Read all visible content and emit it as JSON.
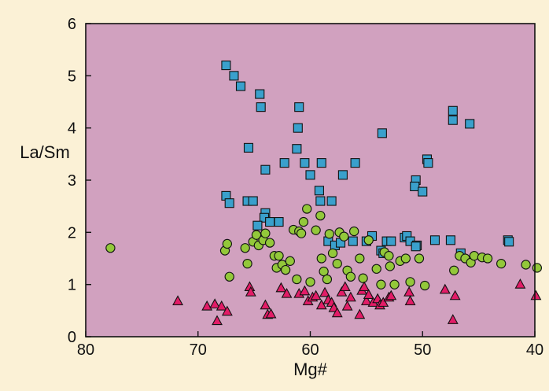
{
  "chart_data": {
    "type": "scatter",
    "title": "",
    "xlabel": "Mg#",
    "ylabel": "La/Sm",
    "xlim": [
      80,
      40
    ],
    "ylim": [
      0,
      6
    ],
    "x_reversed": true,
    "xticks": [
      "80",
      "70",
      "60",
      "50",
      "40"
    ],
    "yticks": [
      "0",
      "1",
      "2",
      "3",
      "4",
      "5",
      "6"
    ],
    "grid": false,
    "colors": {
      "plot_background": "#d1a1bf",
      "page_background": "#fbf1d6",
      "squares": "#3aa0cc",
      "circles": "#93c83a",
      "triangles": "#e21c67",
      "outline": "#111111"
    },
    "series": [
      {
        "name": "squares",
        "marker": "square",
        "points": [
          [
            67.5,
            5.2
          ],
          [
            66.8,
            5.0
          ],
          [
            66.2,
            4.8
          ],
          [
            64.5,
            4.65
          ],
          [
            64.4,
            4.4
          ],
          [
            61.0,
            4.4
          ],
          [
            61.1,
            4.0
          ],
          [
            61.2,
            3.6
          ],
          [
            65.5,
            3.62
          ],
          [
            64.0,
            3.2
          ],
          [
            62.3,
            3.33
          ],
          [
            60.5,
            3.33
          ],
          [
            59.0,
            3.33
          ],
          [
            56.0,
            3.33
          ],
          [
            60.0,
            3.1
          ],
          [
            57.1,
            3.1
          ],
          [
            59.2,
            2.8
          ],
          [
            59.1,
            2.6
          ],
          [
            67.5,
            2.7
          ],
          [
            67.2,
            2.56
          ],
          [
            65.6,
            2.6
          ],
          [
            65.1,
            2.6
          ],
          [
            64.0,
            2.37
          ],
          [
            64.1,
            2.28
          ],
          [
            63.6,
            2.2
          ],
          [
            62.8,
            2.2
          ],
          [
            64.7,
            2.13
          ],
          [
            58.1,
            2.6
          ],
          [
            58.4,
            1.83
          ],
          [
            57.8,
            1.75
          ],
          [
            57.3,
            1.8
          ],
          [
            56.2,
            1.83
          ],
          [
            55.0,
            1.83
          ],
          [
            54.5,
            1.93
          ],
          [
            53.2,
            1.83
          ],
          [
            52.8,
            1.83
          ],
          [
            53.7,
            1.65
          ],
          [
            53.5,
            1.6
          ],
          [
            51.6,
            1.9
          ],
          [
            51.4,
            1.93
          ],
          [
            51.1,
            1.83
          ],
          [
            50.5,
            1.75
          ],
          [
            50.6,
            1.73
          ],
          [
            48.9,
            1.85
          ],
          [
            47.5,
            1.85
          ],
          [
            46.6,
            1.6
          ],
          [
            42.4,
            1.85
          ],
          [
            42.3,
            1.82
          ],
          [
            53.6,
            3.9
          ],
          [
            47.3,
            4.33
          ],
          [
            47.3,
            4.15
          ],
          [
            45.8,
            4.08
          ],
          [
            49.6,
            3.4
          ],
          [
            49.5,
            3.33
          ],
          [
            50.6,
            3.0
          ],
          [
            50.7,
            2.88
          ],
          [
            50.0,
            2.78
          ]
        ]
      },
      {
        "name": "circles",
        "marker": "circle",
        "points": [
          [
            77.8,
            1.7
          ],
          [
            67.6,
            1.65
          ],
          [
            67.4,
            1.78
          ],
          [
            67.2,
            1.15
          ],
          [
            65.8,
            1.7
          ],
          [
            65.6,
            1.4
          ],
          [
            65.1,
            1.82
          ],
          [
            64.8,
            1.95
          ],
          [
            64.6,
            1.75
          ],
          [
            64.2,
            1.85
          ],
          [
            64.0,
            1.98
          ],
          [
            63.6,
            1.8
          ],
          [
            63.2,
            1.55
          ],
          [
            63.0,
            1.32
          ],
          [
            62.8,
            1.55
          ],
          [
            62.5,
            1.38
          ],
          [
            62.2,
            1.28
          ],
          [
            61.8,
            1.45
          ],
          [
            61.5,
            2.05
          ],
          [
            61.2,
            1.1
          ],
          [
            61.0,
            2.02
          ],
          [
            60.8,
            1.98
          ],
          [
            60.6,
            2.2
          ],
          [
            60.3,
            2.45
          ],
          [
            60.0,
            1.05
          ],
          [
            59.5,
            2.04
          ],
          [
            59.1,
            2.32
          ],
          [
            59.0,
            1.5
          ],
          [
            58.8,
            1.25
          ],
          [
            58.5,
            1.1
          ],
          [
            58.3,
            1.97
          ],
          [
            58.0,
            1.6
          ],
          [
            57.6,
            1.4
          ],
          [
            57.4,
            2.0
          ],
          [
            57.0,
            1.92
          ],
          [
            56.7,
            1.27
          ],
          [
            56.4,
            1.15
          ],
          [
            56.1,
            2.02
          ],
          [
            55.6,
            1.5
          ],
          [
            55.3,
            1.12
          ],
          [
            54.8,
            1.85
          ],
          [
            54.1,
            1.3
          ],
          [
            53.7,
            1.0
          ],
          [
            53.4,
            1.62
          ],
          [
            53.0,
            1.55
          ],
          [
            52.9,
            1.35
          ],
          [
            52.5,
            1.0
          ],
          [
            52.0,
            1.45
          ],
          [
            51.5,
            1.5
          ],
          [
            51.1,
            1.05
          ],
          [
            50.3,
            1.5
          ],
          [
            49.8,
            0.98
          ],
          [
            47.2,
            1.27
          ],
          [
            46.7,
            1.55
          ],
          [
            46.2,
            1.5
          ],
          [
            45.7,
            1.42
          ],
          [
            45.4,
            1.55
          ],
          [
            44.7,
            1.52
          ],
          [
            44.2,
            1.5
          ],
          [
            43.0,
            1.4
          ],
          [
            40.8,
            1.38
          ],
          [
            39.8,
            1.32
          ]
        ]
      },
      {
        "name": "triangles",
        "marker": "triangle",
        "points": [
          [
            71.8,
            0.68
          ],
          [
            69.2,
            0.58
          ],
          [
            68.5,
            0.62
          ],
          [
            68.3,
            0.3
          ],
          [
            67.9,
            0.58
          ],
          [
            67.4,
            0.48
          ],
          [
            65.4,
            0.95
          ],
          [
            65.3,
            0.85
          ],
          [
            64.0,
            0.6
          ],
          [
            63.8,
            0.42
          ],
          [
            63.5,
            0.43
          ],
          [
            62.6,
            0.93
          ],
          [
            62.1,
            0.82
          ],
          [
            61.0,
            0.82
          ],
          [
            60.5,
            0.87
          ],
          [
            60.2,
            0.68
          ],
          [
            59.8,
            0.75
          ],
          [
            59.5,
            0.78
          ],
          [
            59.0,
            0.6
          ],
          [
            58.7,
            0.84
          ],
          [
            58.4,
            0.7
          ],
          [
            58.1,
            0.65
          ],
          [
            57.9,
            0.55
          ],
          [
            57.6,
            0.45
          ],
          [
            57.2,
            0.85
          ],
          [
            56.9,
            0.95
          ],
          [
            56.7,
            0.58
          ],
          [
            56.4,
            0.75
          ],
          [
            55.6,
            0.42
          ],
          [
            55.4,
            0.88
          ],
          [
            55.2,
            0.95
          ],
          [
            55.0,
            0.68
          ],
          [
            54.8,
            0.8
          ],
          [
            54.4,
            0.65
          ],
          [
            54.0,
            0.72
          ],
          [
            53.8,
            0.6
          ],
          [
            53.5,
            0.65
          ],
          [
            53.0,
            0.75
          ],
          [
            52.8,
            0.78
          ],
          [
            51.2,
            0.85
          ],
          [
            51.1,
            0.68
          ],
          [
            48.0,
            0.9
          ],
          [
            47.1,
            0.78
          ],
          [
            47.3,
            0.32
          ],
          [
            41.3,
            1.0
          ],
          [
            39.9,
            0.78
          ]
        ]
      }
    ]
  }
}
